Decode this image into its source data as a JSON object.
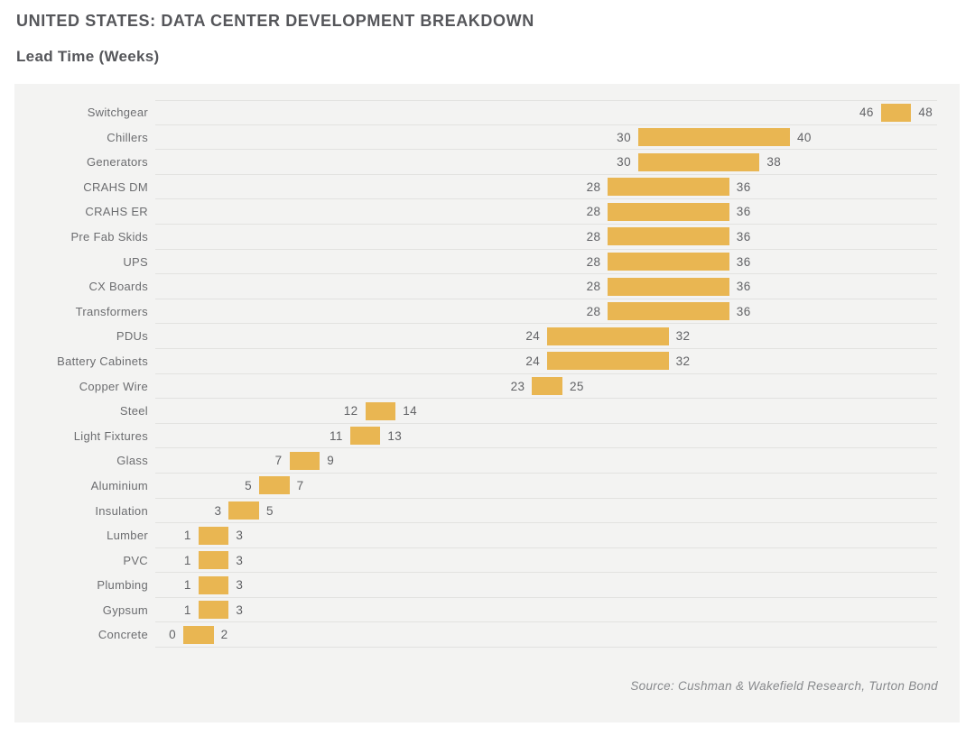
{
  "header": {
    "title": "UNITED STATES: DATA CENTER DEVELOPMENT BREAKDOWN",
    "subtitle": "Lead Time (Weeks)"
  },
  "chart_data": {
    "type": "bar",
    "variant": "horizontal-range",
    "title": "UNITED STATES: DATA CENTER DEVELOPMENT BREAKDOWN",
    "xlabel": "Lead Time (Weeks)",
    "xlim": [
      0,
      50
    ],
    "grid": "horizontal row separators only, no visible value axis",
    "legend": "none",
    "data_labels": "min value left of bar, max value right of bar",
    "categories": [
      "Switchgear",
      "Chillers",
      "Generators",
      "CRAHS DM",
      "CRAHS ER",
      "Pre Fab Skids",
      "UPS",
      "CX Boards",
      "Transformers",
      "PDUs",
      "Battery Cabinets",
      "Copper Wire",
      "Steel",
      "Light Fixtures",
      "Glass",
      "Aluminium",
      "Insulation",
      "Lumber",
      "PVC",
      "Plumbing",
      "Gypsum",
      "Concrete"
    ],
    "ranges": [
      [
        46,
        48
      ],
      [
        30,
        40
      ],
      [
        30,
        38
      ],
      [
        28,
        36
      ],
      [
        28,
        36
      ],
      [
        28,
        36
      ],
      [
        28,
        36
      ],
      [
        28,
        36
      ],
      [
        28,
        36
      ],
      [
        24,
        32
      ],
      [
        24,
        32
      ],
      [
        23,
        25
      ],
      [
        12,
        14
      ],
      [
        11,
        13
      ],
      [
        7,
        9
      ],
      [
        5,
        7
      ],
      [
        3,
        5
      ],
      [
        1,
        3
      ],
      [
        1,
        3
      ],
      [
        1,
        3
      ],
      [
        1,
        3
      ],
      [
        0,
        2
      ]
    ]
  },
  "footer": {
    "source": "Source: Cushman & Wakefield Research, Turton Bond"
  },
  "colors": {
    "bar": "#E9B652",
    "panel_bg": "#F3F3F2",
    "gridline": "#E2E2E0",
    "title_text": "#55565A",
    "category_text": "#6C6D70",
    "value_text": "#626366",
    "source_text": "#87898C",
    "page_bg": "#FFFFFF"
  }
}
